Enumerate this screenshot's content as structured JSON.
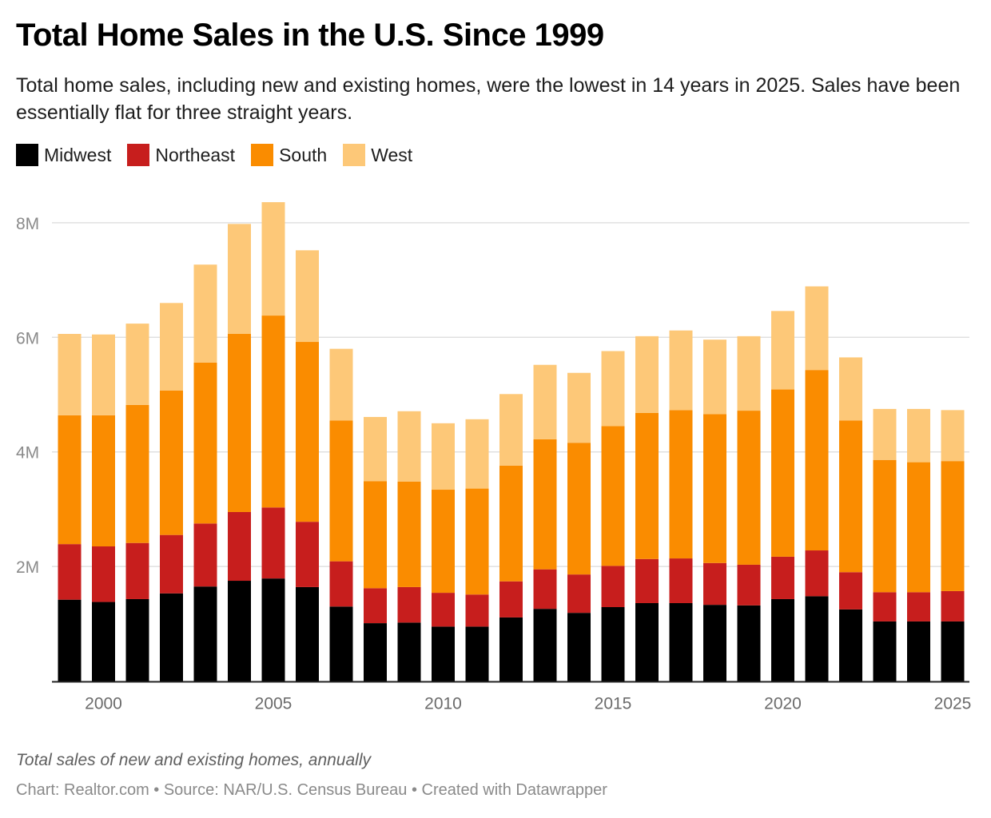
{
  "header": {
    "title": "Total Home Sales in the U.S. Since 1999",
    "subtitle": "Total home sales, including new and existing homes, were the lowest in 14 years in 2025. Sales have been essentially flat for three straight years."
  },
  "legend": [
    {
      "label": "Midwest",
      "color": "#000000"
    },
    {
      "label": "Northeast",
      "color": "#c71e1d"
    },
    {
      "label": "South",
      "color": "#fa8c00"
    },
    {
      "label": "West",
      "color": "#fdc878"
    }
  ],
  "notes": "Total sales of new and existing homes, annually",
  "footer": "Chart: Realtor.com • Source: NAR/U.S. Census Bureau • Created with Datawrapper",
  "chart_data": {
    "type": "bar",
    "stacked": true,
    "title": "Total Home Sales in the U.S. Since 1999",
    "subtitle": "Total home sales, including new and existing homes, were the lowest in 14 years in 2025. Sales have been essentially flat for three straight years.",
    "xlabel": "",
    "ylabel": "",
    "unit": "millions of homes",
    "categories": [
      1999,
      2000,
      2001,
      2002,
      2003,
      2004,
      2005,
      2006,
      2007,
      2008,
      2009,
      2010,
      2011,
      2012,
      2013,
      2014,
      2015,
      2016,
      2017,
      2018,
      2019,
      2020,
      2021,
      2022,
      2023,
      2024,
      2025
    ],
    "series": [
      {
        "name": "Midwest",
        "color": "#000000",
        "values": [
          1.42,
          1.38,
          1.43,
          1.53,
          1.65,
          1.75,
          1.79,
          1.64,
          1.3,
          1.01,
          1.02,
          0.95,
          0.95,
          1.11,
          1.26,
          1.19,
          1.29,
          1.36,
          1.36,
          1.33,
          1.32,
          1.43,
          1.48,
          1.25,
          1.04,
          1.04,
          1.04
        ]
      },
      {
        "name": "Northeast",
        "color": "#c71e1d",
        "values": [
          0.97,
          0.97,
          0.98,
          1.02,
          1.1,
          1.2,
          1.24,
          1.14,
          0.79,
          0.61,
          0.62,
          0.59,
          0.56,
          0.63,
          0.69,
          0.67,
          0.72,
          0.77,
          0.78,
          0.73,
          0.71,
          0.74,
          0.8,
          0.65,
          0.51,
          0.51,
          0.53
        ]
      },
      {
        "name": "South",
        "color": "#fa8c00",
        "values": [
          2.25,
          2.29,
          2.41,
          2.52,
          2.81,
          3.11,
          3.35,
          3.14,
          2.46,
          1.87,
          1.84,
          1.8,
          1.85,
          2.02,
          2.27,
          2.3,
          2.44,
          2.55,
          2.59,
          2.6,
          2.69,
          2.92,
          3.15,
          2.65,
          2.31,
          2.27,
          2.27
        ]
      },
      {
        "name": "West",
        "color": "#fdc878",
        "values": [
          1.42,
          1.41,
          1.42,
          1.53,
          1.71,
          1.92,
          1.98,
          1.6,
          1.25,
          1.12,
          1.23,
          1.16,
          1.21,
          1.25,
          1.3,
          1.22,
          1.31,
          1.34,
          1.39,
          1.3,
          1.3,
          1.37,
          1.46,
          1.1,
          0.89,
          0.93,
          0.89
        ]
      }
    ],
    "ylim": [
      0,
      8.36
    ],
    "y_ticks": [
      {
        "value": 2,
        "label": "2M"
      },
      {
        "value": 4,
        "label": "4M"
      },
      {
        "value": 6,
        "label": "6M"
      },
      {
        "value": 8,
        "label": "8M"
      }
    ],
    "x_ticks": [
      {
        "value": 2000,
        "label": "2000"
      },
      {
        "value": 2005,
        "label": "2005"
      },
      {
        "value": 2010,
        "label": "2010"
      },
      {
        "value": 2015,
        "label": "2015"
      },
      {
        "value": 2020,
        "label": "2020"
      },
      {
        "value": 2025,
        "label": "2025"
      }
    ],
    "grid": "horizontal",
    "legend_position": "top-left"
  }
}
